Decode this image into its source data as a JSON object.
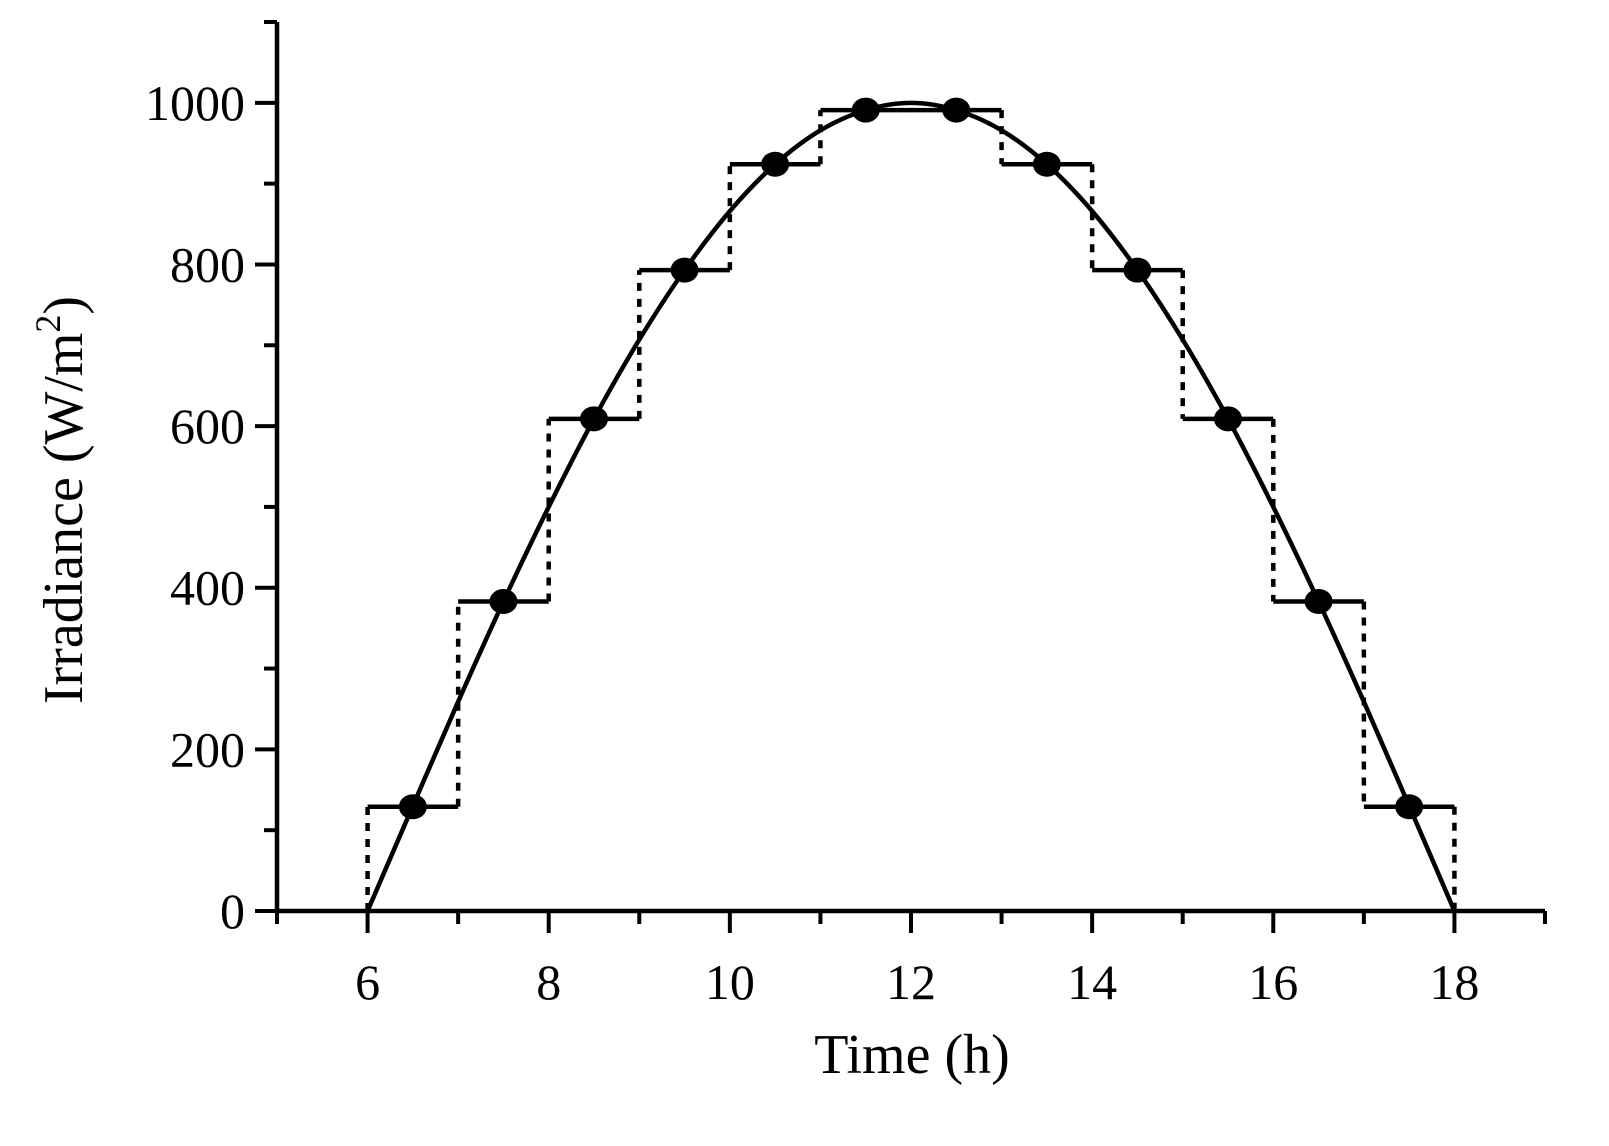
{
  "chart_data": {
    "type": "line",
    "title": "",
    "xlabel": "Time (h)",
    "ylabel_main": "Irradiance (W/m",
    "ylabel_sup": "2",
    "ylabel_close": ")",
    "xlim": [
      5,
      19
    ],
    "ylim": [
      0,
      1100
    ],
    "x_major_ticks": [
      6,
      8,
      10,
      12,
      14,
      16,
      18
    ],
    "x_minor_ticks": [
      5,
      7,
      9,
      11,
      13,
      15,
      17,
      19
    ],
    "y_major_ticks": [
      0,
      200,
      400,
      600,
      800,
      1000
    ],
    "y_minor_ticks": [
      100,
      300,
      500,
      700,
      900,
      1100
    ],
    "x_tick_labels": [
      "6",
      "8",
      "10",
      "12",
      "14",
      "16",
      "18"
    ],
    "y_tick_labels": [
      "0",
      "200",
      "400",
      "600",
      "800",
      "1000"
    ],
    "grid": false,
    "series": [
      {
        "kind": "curve",
        "x": [
          6,
          6.5,
          7,
          7.5,
          8,
          8.5,
          9,
          9.5,
          10,
          10.5,
          11,
          11.5,
          12,
          12.5,
          13,
          13.5,
          14,
          14.5,
          15,
          15.5,
          16,
          16.5,
          17,
          17.5,
          18
        ],
        "y": [
          0,
          130,
          259,
          383,
          500,
          609,
          707,
          793,
          866,
          924,
          966,
          991,
          1000,
          991,
          966,
          924,
          866,
          793,
          707,
          609,
          500,
          383,
          259,
          130,
          0
        ]
      },
      {
        "kind": "hourly-average-steps",
        "x_start": [
          6,
          7,
          8,
          9,
          10,
          11,
          12,
          13,
          14,
          15,
          16,
          17
        ],
        "x_end": [
          7,
          8,
          9,
          10,
          11,
          12,
          13,
          14,
          15,
          16,
          17,
          18
        ],
        "values": [
          129,
          383,
          609,
          793,
          924,
          991,
          991,
          924,
          793,
          609,
          383,
          129
        ]
      },
      {
        "kind": "points",
        "x": [
          6.5,
          7.5,
          8.5,
          9.5,
          10.5,
          11.5,
          12.5,
          13.5,
          14.5,
          15.5,
          16.5,
          17.5
        ],
        "y": [
          129,
          383,
          609,
          793,
          924,
          991,
          991,
          924,
          793,
          609,
          383,
          129
        ]
      }
    ],
    "colors": {
      "line": "#000000",
      "background": "#ffffff"
    }
  }
}
